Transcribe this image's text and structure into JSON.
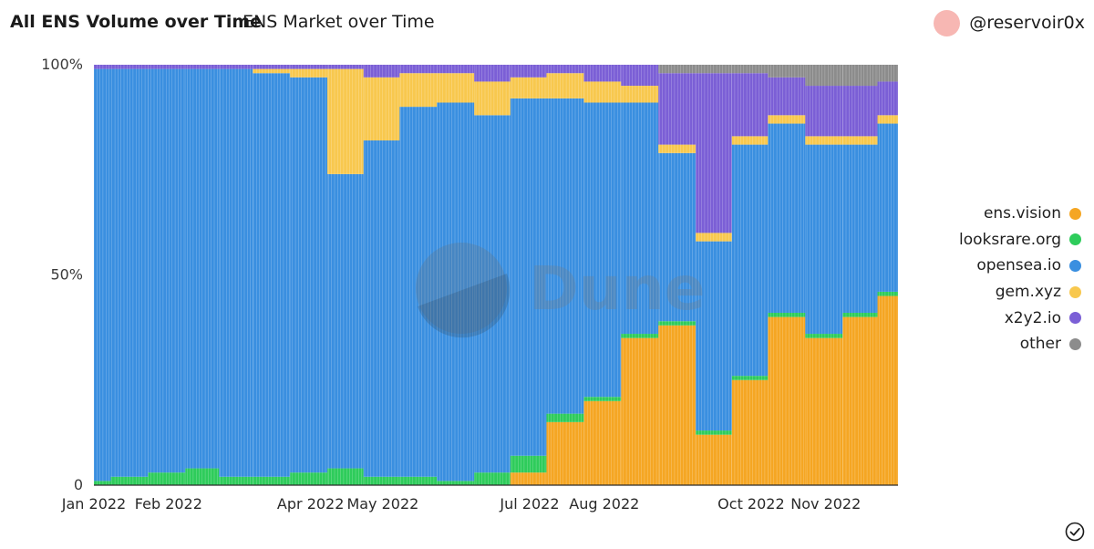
{
  "header": {
    "title": "All ENS Volume over Time",
    "subtitle": "ENS Market over Time",
    "author": "@reservoir0x"
  },
  "watermark": "Dune",
  "icons": {
    "avatar": "avatar",
    "status": "check-circle-icon"
  },
  "chart_data": {
    "type": "bar",
    "stacked": "percent",
    "title": "ENS Market over Time",
    "xlabel": "",
    "ylabel": "",
    "ylim": [
      0,
      100
    ],
    "y_ticks": [
      "0",
      "50%",
      "100%"
    ],
    "x_range": [
      "2022-01-01",
      "2022-12-01"
    ],
    "x_ticks": [
      {
        "label": "Jan 2022",
        "date": "2022-01-01"
      },
      {
        "label": "Feb 2022",
        "date": "2022-02-01"
      },
      {
        "label": "Apr 2022",
        "date": "2022-04-01"
      },
      {
        "label": "May 2022",
        "date": "2022-05-01"
      },
      {
        "label": "Jul 2022",
        "date": "2022-07-01"
      },
      {
        "label": "Aug 2022",
        "date": "2022-08-01"
      },
      {
        "label": "Oct 2022",
        "date": "2022-10-01"
      },
      {
        "label": "Nov 2022",
        "date": "2022-11-01"
      }
    ],
    "legend_position": "right",
    "series": [
      {
        "name": "ens.vision",
        "color": "#f5a623"
      },
      {
        "name": "looksrare.org",
        "color": "#2ecc5b"
      },
      {
        "name": "opensea.io",
        "color": "#3a8fe0"
      },
      {
        "name": "gem.xyz",
        "color": "#f8c84e"
      },
      {
        "name": "x2y2.io",
        "color": "#7b5fd6"
      },
      {
        "name": "other",
        "color": "#8c8c8c"
      }
    ],
    "x": [
      "2022-01-01",
      "2022-01-15",
      "2022-02-01",
      "2022-02-15",
      "2022-03-01",
      "2022-03-15",
      "2022-04-01",
      "2022-04-15",
      "2022-05-01",
      "2022-05-15",
      "2022-06-01",
      "2022-06-15",
      "2022-07-01",
      "2022-07-15",
      "2022-08-01",
      "2022-08-15",
      "2022-09-01",
      "2022-09-15",
      "2022-10-01",
      "2022-10-15",
      "2022-11-01",
      "2022-11-15",
      "2022-11-30"
    ],
    "stack_values": {
      "ens.vision": [
        0,
        0,
        0,
        0,
        0,
        0,
        0,
        0,
        0,
        0,
        0,
        0,
        3,
        15,
        20,
        35,
        38,
        12,
        25,
        40,
        35,
        40,
        45
      ],
      "looksrare.org": [
        1,
        2,
        3,
        4,
        2,
        2,
        3,
        4,
        2,
        2,
        1,
        3,
        4,
        2,
        1,
        1,
        1,
        1,
        1,
        1,
        1,
        1,
        1
      ],
      "opensea.io": [
        98,
        97,
        96,
        95,
        97,
        96,
        94,
        70,
        80,
        88,
        90,
        85,
        85,
        75,
        70,
        55,
        40,
        45,
        55,
        45,
        45,
        40,
        40
      ],
      "gem.xyz": [
        0,
        0,
        0,
        0,
        0,
        1,
        2,
        25,
        15,
        8,
        7,
        8,
        5,
        6,
        5,
        4,
        2,
        2,
        2,
        2,
        2,
        2,
        2
      ],
      "x2y2.io": [
        1,
        1,
        1,
        1,
        1,
        1,
        1,
        1,
        3,
        2,
        2,
        4,
        3,
        2,
        4,
        5,
        17,
        38,
        15,
        9,
        12,
        12,
        8
      ],
      "other": [
        0,
        0,
        0,
        0,
        0,
        0,
        0,
        0,
        0,
        0,
        0,
        0,
        0,
        0,
        0,
        0,
        2,
        2,
        2,
        3,
        5,
        5,
        4
      ]
    }
  }
}
